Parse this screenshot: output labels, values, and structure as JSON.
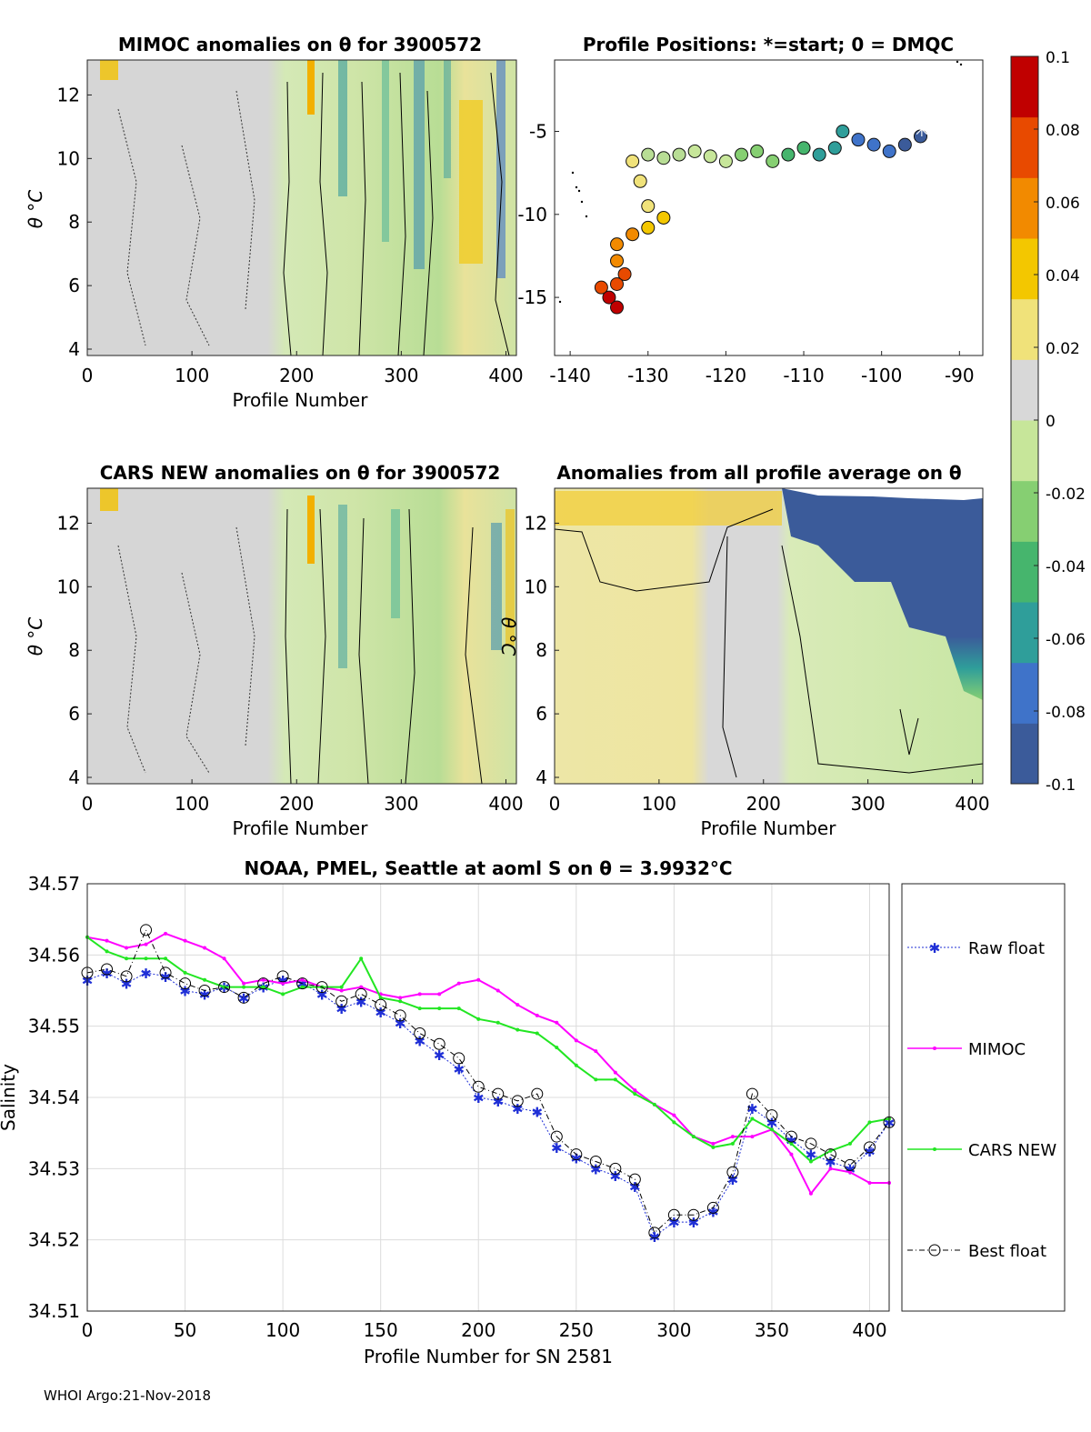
{
  "page": {
    "footer": "WHOI Argo:21-Nov-2018"
  },
  "colorbar": {
    "min": -0.1,
    "max": 0.1,
    "ticks": [
      "0.1",
      "0.08",
      "0.06",
      "0.04",
      "0.02",
      "0",
      "-0.02",
      "-0.04",
      "-0.06",
      "-0.08",
      "-0.1"
    ],
    "palette": [
      "#3b5b9a",
      "#3f73c9",
      "#2f9e9a",
      "#46b56d",
      "#86cf72",
      "#c7e69a",
      "#d8d8d8",
      "#f0e27a",
      "#f3c700",
      "#f28a00",
      "#e84a00",
      "#c00000"
    ]
  },
  "panels": {
    "mimoc": {
      "title": "MIMOC anomalies on θ  for 3900572",
      "xlabel": "Profile Number",
      "ylabel": "θ °C",
      "xticks": [
        "0",
        "100",
        "200",
        "300",
        "400"
      ],
      "yticks": [
        "4",
        "6",
        "8",
        "10",
        "12"
      ]
    },
    "positions": {
      "title": "Profile Positions: *=start; 0 = DMQC",
      "xticks": [
        "-140",
        "-130",
        "-120",
        "-110",
        "-100",
        "-90"
      ],
      "yticks": [
        "-5",
        "-10",
        "-15"
      ]
    },
    "cars": {
      "title": "CARS NEW anomalies on θ for 3900572",
      "xlabel": "Profile Number",
      "ylabel": "θ °C",
      "xticks": [
        "0",
        "100",
        "200",
        "300",
        "400"
      ],
      "yticks": [
        "4",
        "6",
        "8",
        "10",
        "12"
      ]
    },
    "allavg": {
      "title": "Anomalies from all profile average on θ",
      "xlabel": "Profile Number",
      "ylabel": "θ °C",
      "xticks": [
        "0",
        "100",
        "200",
        "300",
        "400"
      ],
      "yticks": [
        "4",
        "6",
        "8",
        "10",
        "12"
      ]
    }
  },
  "chart_data": {
    "type": "line",
    "title": "NOAA, PMEL, Seattle at aoml S on θ = 3.9932°C",
    "xlabel": "Profile Number for SN 2581",
    "ylabel": "Salinity",
    "xlim": [
      0,
      410
    ],
    "ylim": [
      34.51,
      34.57
    ],
    "xticks": [
      "0",
      "50",
      "100",
      "150",
      "200",
      "250",
      "300",
      "350",
      "400"
    ],
    "yticks": [
      "34.57",
      "34.56",
      "34.55",
      "34.54",
      "34.53",
      "34.52",
      "34.51"
    ],
    "x": [
      0,
      10,
      20,
      30,
      40,
      50,
      60,
      70,
      80,
      90,
      100,
      110,
      120,
      130,
      140,
      150,
      160,
      170,
      180,
      190,
      200,
      210,
      220,
      230,
      240,
      250,
      260,
      270,
      280,
      290,
      300,
      310,
      320,
      330,
      340,
      350,
      360,
      370,
      380,
      390,
      400,
      410
    ],
    "series": [
      {
        "name": "Raw float",
        "color": "#1f2fd6",
        "values": [
          34.5565,
          34.5575,
          34.556,
          34.5575,
          34.557,
          34.555,
          34.5545,
          34.5555,
          34.554,
          34.5555,
          34.5565,
          34.556,
          34.5545,
          34.5525,
          34.5535,
          34.552,
          34.5505,
          34.548,
          34.546,
          34.544,
          34.54,
          34.5395,
          34.5385,
          34.538,
          34.533,
          34.5315,
          34.53,
          34.529,
          34.5275,
          34.5205,
          34.5225,
          34.5225,
          34.524,
          34.5285,
          34.5385,
          34.5365,
          34.534,
          34.532,
          34.531,
          34.53,
          34.5325,
          34.5365
        ]
      },
      {
        "name": "MIMOC",
        "color": "#ff00ff",
        "values": [
          34.5625,
          34.562,
          34.561,
          34.5615,
          34.563,
          34.562,
          34.561,
          34.5595,
          34.556,
          34.5565,
          34.556,
          34.5565,
          34.5555,
          34.555,
          34.5555,
          34.5545,
          34.554,
          34.5545,
          34.5545,
          34.556,
          34.5565,
          34.555,
          34.553,
          34.5515,
          34.5505,
          34.548,
          34.5465,
          34.5435,
          34.541,
          34.539,
          34.5375,
          34.5345,
          34.5335,
          34.5345,
          34.5345,
          34.5355,
          34.532,
          34.5265,
          34.53,
          34.5295,
          34.528,
          34.528
        ]
      },
      {
        "name": "CARS NEW",
        "color": "#22e622",
        "values": [
          34.5625,
          34.5605,
          34.5595,
          34.5595,
          34.5595,
          34.5575,
          34.5565,
          34.5555,
          34.5555,
          34.5555,
          34.5545,
          34.5555,
          34.5555,
          34.5555,
          34.5595,
          34.554,
          34.5535,
          34.5525,
          34.5525,
          34.5525,
          34.551,
          34.5505,
          34.5495,
          34.549,
          34.547,
          34.5445,
          34.5425,
          34.5425,
          34.5405,
          34.539,
          34.5365,
          34.5345,
          34.533,
          34.5335,
          34.537,
          34.5355,
          34.5335,
          34.531,
          34.5325,
          34.5335,
          34.5365,
          34.537
        ]
      },
      {
        "name": "Best float",
        "color": "#000000",
        "values": [
          34.5575,
          34.558,
          34.557,
          34.5635,
          34.5575,
          34.556,
          34.555,
          34.5555,
          34.554,
          34.556,
          34.557,
          34.556,
          34.5555,
          34.5535,
          34.5545,
          34.553,
          34.5515,
          34.549,
          34.5475,
          34.5455,
          34.5415,
          34.5405,
          34.5395,
          34.5405,
          34.5345,
          34.532,
          34.531,
          34.53,
          34.5285,
          34.521,
          34.5235,
          34.5235,
          34.5245,
          34.5295,
          34.5405,
          34.5375,
          34.5345,
          34.5335,
          34.532,
          34.5305,
          34.533,
          34.5365
        ]
      }
    ]
  }
}
